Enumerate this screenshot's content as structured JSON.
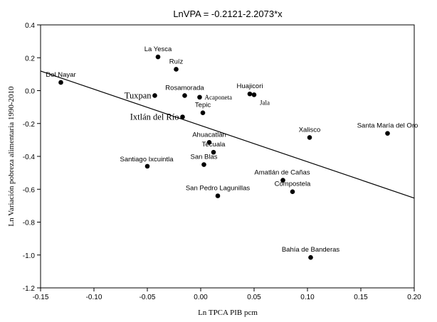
{
  "chart_data": {
    "type": "scatter",
    "title": "LnVPA = -0.2121-2.2073*x",
    "xlabel": "Ln TPCA PIB pcm",
    "ylabel": "Ln Variación pobreza alimentaria 1990-2010",
    "xlim": [
      -0.15,
      0.2
    ],
    "ylim": [
      -1.2,
      0.4
    ],
    "x_ticks": [
      -0.15,
      -0.1,
      -0.05,
      0.0,
      0.05,
      0.1,
      0.15,
      0.2
    ],
    "x_tick_labels": [
      "-0.15",
      "-0.10",
      "-0.05",
      "0.00",
      "0.05",
      "0.10",
      "0.15",
      "0.20"
    ],
    "y_ticks": [
      0.4,
      0.2,
      0.0,
      -0.2,
      -0.4,
      -0.6,
      -0.8,
      -1.0,
      -1.2
    ],
    "y_tick_labels": [
      "0.4",
      "0.2",
      "0.0",
      "-0.2",
      "-0.4",
      "-0.6",
      "-0.8",
      "-1.0",
      "-1.2"
    ],
    "grid": false,
    "regression": {
      "intercept": -0.2121,
      "slope": -2.2073
    },
    "points": [
      {
        "name": "Del Nayar",
        "x": -0.131,
        "y": 0.05
      },
      {
        "name": "La Yesca",
        "x": -0.04,
        "y": 0.205
      },
      {
        "name": "Ruíz",
        "x": -0.023,
        "y": 0.13
      },
      {
        "name": "Tuxpan",
        "x": -0.043,
        "y": -0.03
      },
      {
        "name": "Rosamorada",
        "x": -0.015,
        "y": -0.03
      },
      {
        "name": "Acaponeta",
        "x": -0.001,
        "y": -0.04
      },
      {
        "name": "Tepic",
        "x": 0.002,
        "y": -0.135
      },
      {
        "name": "Ixtlán del Río",
        "x": -0.017,
        "y": -0.16
      },
      {
        "name": "Huajicori",
        "x": 0.046,
        "y": -0.02
      },
      {
        "name": "Jala",
        "x": 0.05,
        "y": -0.025
      },
      {
        "name": "Ahuacatlán",
        "x": 0.008,
        "y": -0.315
      },
      {
        "name": "Tecuala",
        "x": 0.012,
        "y": -0.375
      },
      {
        "name": "San Blas",
        "x": 0.003,
        "y": -0.45
      },
      {
        "name": "Santiago Ixcuintla",
        "x": -0.05,
        "y": -0.46
      },
      {
        "name": "San Pedro Lagunillas",
        "x": 0.016,
        "y": -0.64
      },
      {
        "name": "Xalisco",
        "x": 0.102,
        "y": -0.285
      },
      {
        "name": "Santa María del Oro",
        "x": 0.175,
        "y": -0.26
      },
      {
        "name": "Amatlán de Cañas",
        "x": 0.077,
        "y": -0.545
      },
      {
        "name": "Compostela",
        "x": 0.086,
        "y": -0.615
      },
      {
        "name": "Bahía de Banderas",
        "x": 0.103,
        "y": -1.015
      }
    ]
  }
}
